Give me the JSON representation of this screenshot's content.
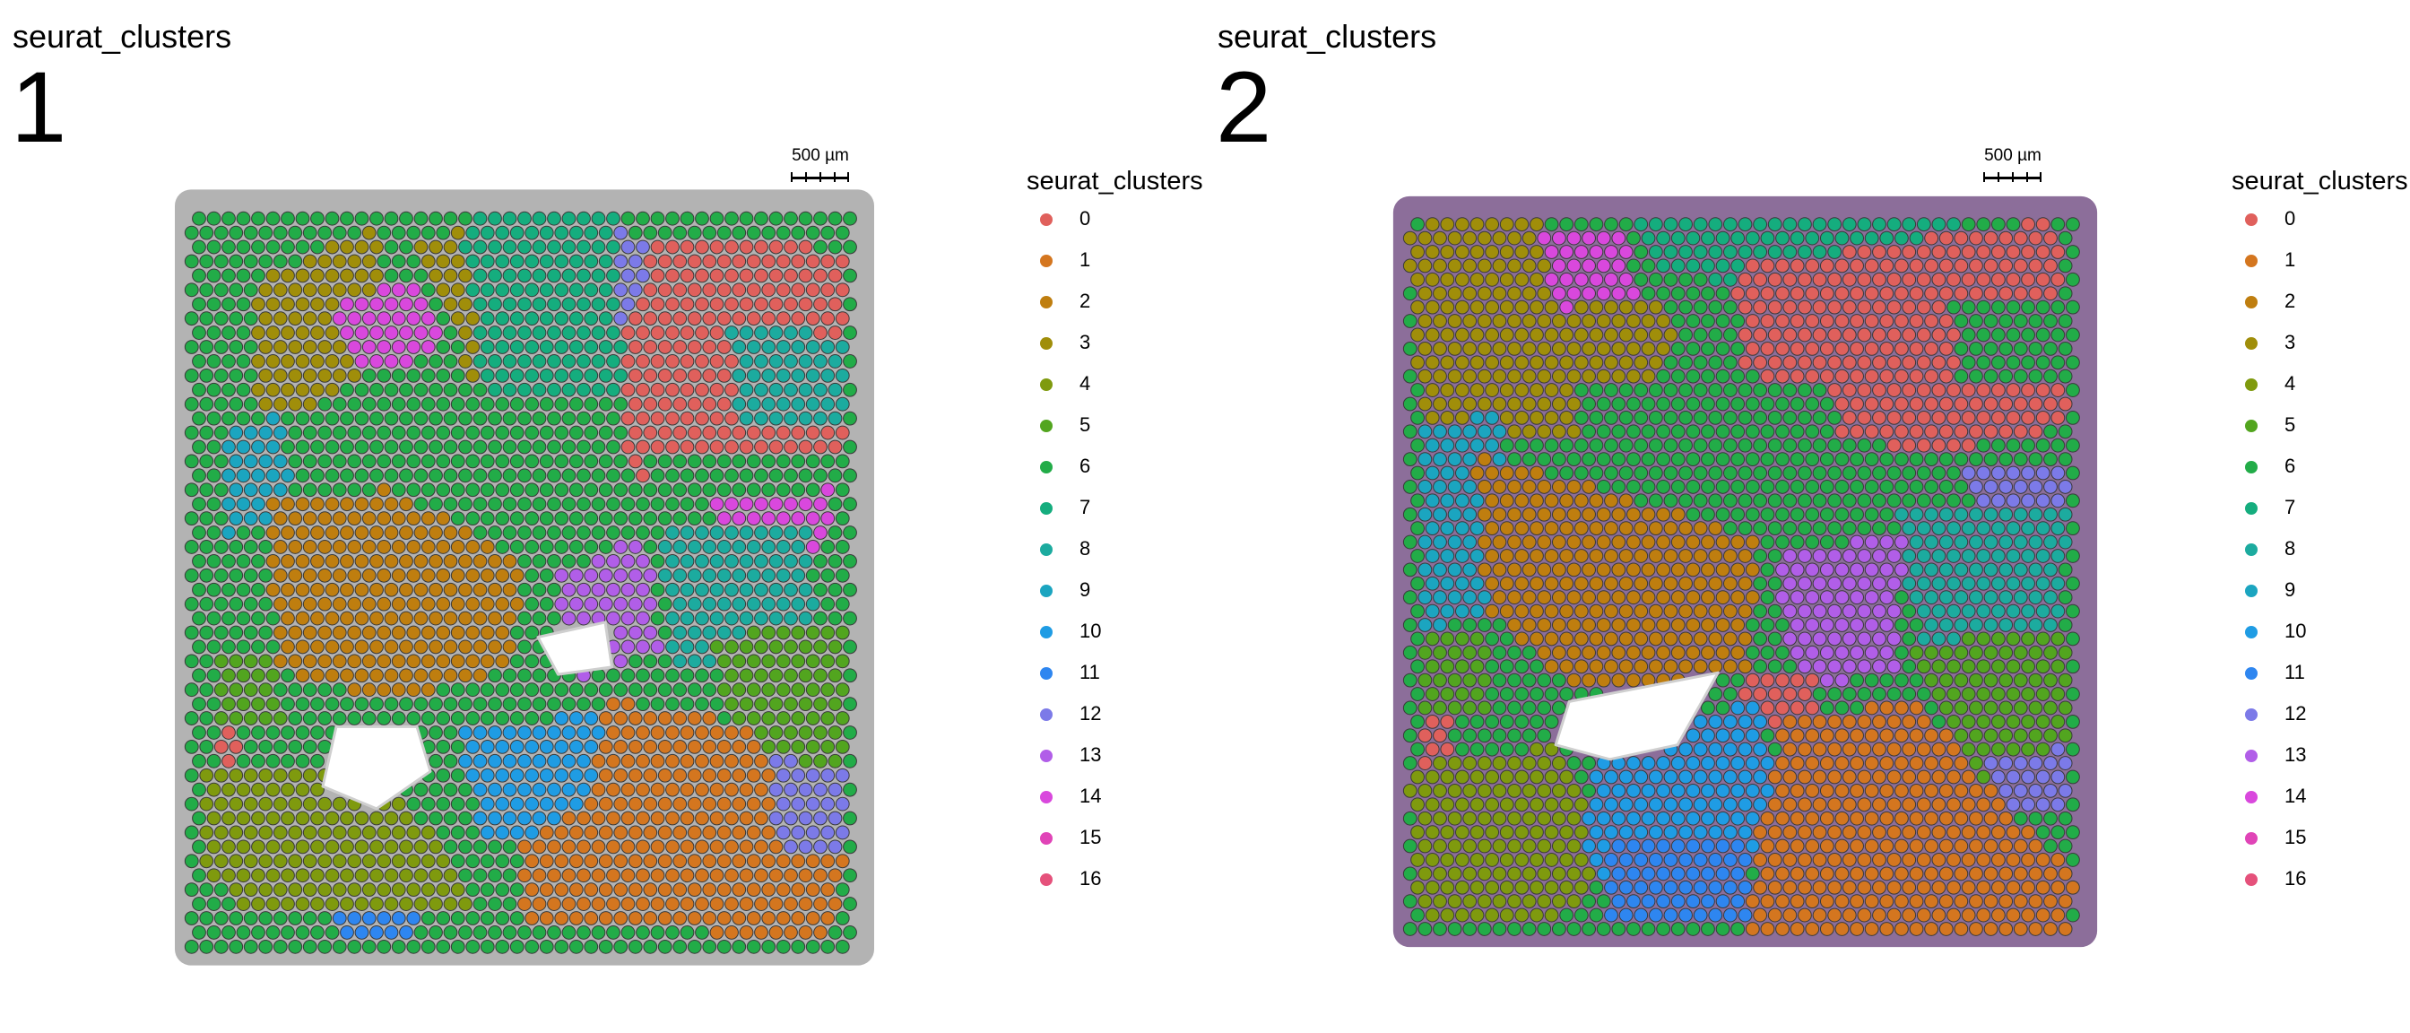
{
  "chart_data": [
    {
      "type": "scatter",
      "group_title": "seurat_clusters",
      "slice": "1",
      "scalebar": "500 µm",
      "legend": {
        "title": "seurat_clusters",
        "placement": "right",
        "entries": [
          "0",
          "1",
          "2",
          "3",
          "4",
          "5",
          "6",
          "7",
          "8",
          "9",
          "10",
          "11",
          "12",
          "13",
          "14",
          "15",
          "16"
        ]
      },
      "background_color": "#b3b3b3",
      "x_range": [
        0,
        1
      ],
      "y_range": [
        0,
        1
      ],
      "regions": [
        {
          "cluster": "3",
          "points": [
            [
              0.1,
              0.9
            ],
            [
              0.28,
              0.97
            ],
            [
              0.3,
              0.8
            ],
            [
              0.18,
              0.72
            ],
            [
              0.1,
              0.72
            ]
          ]
        },
        {
          "cluster": "14",
          "points": [
            [
              0.22,
              0.87
            ],
            [
              0.34,
              0.9
            ],
            [
              0.38,
              0.8
            ],
            [
              0.24,
              0.77
            ]
          ]
        },
        {
          "cluster": "3",
          "points": [
            [
              0.34,
              0.95
            ],
            [
              0.52,
              0.99
            ],
            [
              0.58,
              0.8
            ],
            [
              0.42,
              0.77
            ]
          ]
        },
        {
          "cluster": "7",
          "points": [
            [
              0.4,
              0.98
            ],
            [
              0.64,
              0.99
            ],
            [
              0.66,
              0.75
            ],
            [
              0.44,
              0.75
            ]
          ]
        },
        {
          "cluster": "12",
          "points": [
            [
              0.64,
              0.97
            ],
            [
              0.71,
              0.92
            ],
            [
              0.7,
              0.8
            ],
            [
              0.64,
              0.82
            ]
          ]
        },
        {
          "cluster": "0",
          "points": [
            [
              0.7,
              0.96
            ],
            [
              0.98,
              0.94
            ],
            [
              0.98,
              0.6
            ],
            [
              0.66,
              0.62
            ],
            [
              0.64,
              0.8
            ]
          ]
        },
        {
          "cluster": "8",
          "points": [
            [
              0.8,
              0.85
            ],
            [
              0.98,
              0.82
            ],
            [
              0.98,
              0.7
            ],
            [
              0.82,
              0.7
            ]
          ]
        },
        {
          "cluster": "9",
          "points": [
            [
              0.06,
              0.7
            ],
            [
              0.14,
              0.72
            ],
            [
              0.16,
              0.58
            ],
            [
              0.06,
              0.56
            ]
          ]
        },
        {
          "cluster": "6",
          "points": [
            [
              0.2,
              0.7
            ],
            [
              0.62,
              0.72
            ],
            [
              0.64,
              0.58
            ],
            [
              0.36,
              0.55
            ],
            [
              0.22,
              0.6
            ]
          ]
        },
        {
          "cluster": "2",
          "points": [
            [
              0.12,
              0.6
            ],
            [
              0.3,
              0.62
            ],
            [
              0.5,
              0.52
            ],
            [
              0.48,
              0.38
            ],
            [
              0.3,
              0.33
            ],
            [
              0.13,
              0.38
            ]
          ]
        },
        {
          "cluster": "6",
          "points": [
            [
              0.68,
              0.66
            ],
            [
              0.98,
              0.66
            ],
            [
              0.98,
              0.52
            ],
            [
              0.7,
              0.54
            ]
          ]
        },
        {
          "cluster": "14",
          "points": [
            [
              0.78,
              0.6
            ],
            [
              0.96,
              0.62
            ],
            [
              0.95,
              0.54
            ],
            [
              0.8,
              0.54
            ]
          ]
        },
        {
          "cluster": "13",
          "points": [
            [
              0.54,
              0.5
            ],
            [
              0.68,
              0.56
            ],
            [
              0.7,
              0.4
            ],
            [
              0.58,
              0.36
            ]
          ]
        },
        {
          "cluster": "8",
          "points": [
            [
              0.7,
              0.56
            ],
            [
              0.92,
              0.58
            ],
            [
              0.94,
              0.4
            ],
            [
              0.72,
              0.38
            ]
          ]
        },
        {
          "cluster": "5",
          "points": [
            [
              0.04,
              0.4
            ],
            [
              0.12,
              0.4
            ],
            [
              0.14,
              0.3
            ],
            [
              0.04,
              0.3
            ]
          ]
        },
        {
          "cluster": "0",
          "points": [
            [
              0.04,
              0.3
            ],
            [
              0.08,
              0.3
            ],
            [
              0.08,
              0.24
            ],
            [
              0.04,
              0.24
            ]
          ]
        },
        {
          "cluster": "4",
          "points": [
            [
              0.02,
              0.24
            ],
            [
              0.28,
              0.24
            ],
            [
              0.38,
              0.14
            ],
            [
              0.44,
              0.05
            ],
            [
              0.1,
              0.05
            ],
            [
              0.02,
              0.1
            ]
          ]
        },
        {
          "cluster": "5",
          "points": [
            [
              0.78,
              0.42
            ],
            [
              0.98,
              0.44
            ],
            [
              0.98,
              0.2
            ],
            [
              0.82,
              0.22
            ]
          ]
        },
        {
          "cluster": "10",
          "points": [
            [
              0.4,
              0.3
            ],
            [
              0.66,
              0.32
            ],
            [
              0.66,
              0.16
            ],
            [
              0.44,
              0.14
            ]
          ]
        },
        {
          "cluster": "1",
          "points": [
            [
              0.62,
              0.34
            ],
            [
              0.84,
              0.3
            ],
            [
              0.98,
              0.12
            ],
            [
              0.96,
              0.02
            ],
            [
              0.5,
              0.03
            ],
            [
              0.5,
              0.15
            ],
            [
              0.6,
              0.2
            ]
          ]
        },
        {
          "cluster": "12",
          "points": [
            [
              0.86,
              0.26
            ],
            [
              0.98,
              0.24
            ],
            [
              0.98,
              0.12
            ],
            [
              0.88,
              0.14
            ]
          ]
        },
        {
          "cluster": "11",
          "points": [
            [
              0.22,
              0.06
            ],
            [
              0.34,
              0.06
            ],
            [
              0.34,
              0.02
            ],
            [
              0.22,
              0.02
            ]
          ]
        }
      ],
      "holes": [
        {
          "points": [
            [
              0.22,
              0.3
            ],
            [
              0.34,
              0.3
            ],
            [
              0.36,
              0.24
            ],
            [
              0.28,
              0.19
            ],
            [
              0.2,
              0.22
            ]
          ]
        },
        {
          "points": [
            [
              0.52,
              0.42
            ],
            [
              0.62,
              0.44
            ],
            [
              0.63,
              0.38
            ],
            [
              0.55,
              0.37
            ]
          ]
        }
      ]
    },
    {
      "type": "scatter",
      "group_title": "seurat_clusters",
      "slice": "2",
      "scalebar": "500 µm",
      "legend": {
        "title": "seurat_clusters",
        "placement": "right",
        "entries": [
          "0",
          "1",
          "2",
          "3",
          "4",
          "5",
          "6",
          "7",
          "8",
          "9",
          "10",
          "11",
          "12",
          "13",
          "14",
          "15",
          "16"
        ]
      },
      "background_color": "#8c6e9a",
      "x_range": [
        0,
        1
      ],
      "y_range": [
        0,
        1
      ],
      "regions": [
        {
          "cluster": "3",
          "points": [
            [
              0.0,
              0.98
            ],
            [
              0.2,
              0.99
            ],
            [
              0.26,
              0.9
            ],
            [
              0.4,
              0.86
            ],
            [
              0.36,
              0.7
            ],
            [
              0.2,
              0.68
            ],
            [
              0.02,
              0.7
            ]
          ]
        },
        {
          "cluster": "14",
          "points": [
            [
              0.2,
              0.97
            ],
            [
              0.32,
              0.97
            ],
            [
              0.34,
              0.88
            ],
            [
              0.22,
              0.86
            ]
          ]
        },
        {
          "cluster": "7",
          "points": [
            [
              0.32,
              0.99
            ],
            [
              0.82,
              0.99
            ],
            [
              0.8,
              0.92
            ],
            [
              0.46,
              0.9
            ],
            [
              0.36,
              0.92
            ]
          ]
        },
        {
          "cluster": "0",
          "points": [
            [
              0.48,
              0.92
            ],
            [
              0.96,
              0.99
            ],
            [
              0.98,
              0.7
            ],
            [
              0.76,
              0.66
            ],
            [
              0.62,
              0.7
            ],
            [
              0.5,
              0.78
            ]
          ]
        },
        {
          "cluster": "6",
          "points": [
            [
              0.8,
              0.88
            ],
            [
              0.98,
              0.88
            ],
            [
              0.98,
              0.76
            ],
            [
              0.82,
              0.76
            ]
          ]
        },
        {
          "cluster": "6",
          "points": [
            [
              0.24,
              0.76
            ],
            [
              0.62,
              0.76
            ],
            [
              0.66,
              0.62
            ],
            [
              0.52,
              0.56
            ],
            [
              0.3,
              0.6
            ]
          ]
        },
        {
          "cluster": "9",
          "points": [
            [
              0.02,
              0.7
            ],
            [
              0.14,
              0.72
            ],
            [
              0.16,
              0.44
            ],
            [
              0.02,
              0.42
            ]
          ]
        },
        {
          "cluster": "2",
          "points": [
            [
              0.1,
              0.66
            ],
            [
              0.34,
              0.6
            ],
            [
              0.52,
              0.54
            ],
            [
              0.5,
              0.36
            ],
            [
              0.26,
              0.33
            ],
            [
              0.12,
              0.44
            ]
          ]
        },
        {
          "cluster": "12",
          "points": [
            [
              0.82,
              0.64
            ],
            [
              0.98,
              0.64
            ],
            [
              0.98,
              0.56
            ],
            [
              0.84,
              0.56
            ]
          ]
        },
        {
          "cluster": "8",
          "points": [
            [
              0.72,
              0.58
            ],
            [
              0.98,
              0.58
            ],
            [
              0.96,
              0.4
            ],
            [
              0.76,
              0.4
            ]
          ]
        },
        {
          "cluster": "13",
          "points": [
            [
              0.54,
              0.52
            ],
            [
              0.74,
              0.56
            ],
            [
              0.72,
              0.36
            ],
            [
              0.58,
              0.34
            ]
          ]
        },
        {
          "cluster": "0",
          "points": [
            [
              0.5,
              0.36
            ],
            [
              0.6,
              0.36
            ],
            [
              0.62,
              0.26
            ],
            [
              0.5,
              0.3
            ]
          ]
        },
        {
          "cluster": "5",
          "points": [
            [
              0.02,
              0.42
            ],
            [
              0.12,
              0.42
            ],
            [
              0.12,
              0.3
            ],
            [
              0.02,
              0.3
            ]
          ]
        },
        {
          "cluster": "0",
          "points": [
            [
              0.02,
              0.3
            ],
            [
              0.07,
              0.3
            ],
            [
              0.07,
              0.23
            ],
            [
              0.02,
              0.23
            ]
          ]
        },
        {
          "cluster": "4",
          "points": [
            [
              0.0,
              0.23
            ],
            [
              0.22,
              0.26
            ],
            [
              0.3,
              0.1
            ],
            [
              0.22,
              0.01
            ],
            [
              0.02,
              0.01
            ]
          ]
        },
        {
          "cluster": "5",
          "points": [
            [
              0.74,
              0.4
            ],
            [
              0.98,
              0.42
            ],
            [
              0.98,
              0.18
            ],
            [
              0.84,
              0.2
            ]
          ]
        },
        {
          "cluster": "12",
          "points": [
            [
              0.86,
              0.24
            ],
            [
              0.98,
              0.26
            ],
            [
              0.98,
              0.16
            ],
            [
              0.86,
              0.16
            ]
          ]
        },
        {
          "cluster": "10",
          "points": [
            [
              0.28,
              0.26
            ],
            [
              0.52,
              0.32
            ],
            [
              0.56,
              0.12
            ],
            [
              0.36,
              0.04
            ],
            [
              0.26,
              0.1
            ]
          ]
        },
        {
          "cluster": "11",
          "points": [
            [
              0.3,
              0.12
            ],
            [
              0.5,
              0.12
            ],
            [
              0.52,
              0.01
            ],
            [
              0.3,
              0.01
            ]
          ]
        },
        {
          "cluster": "1",
          "points": [
            [
              0.56,
              0.3
            ],
            [
              0.76,
              0.32
            ],
            [
              0.86,
              0.2
            ],
            [
              0.99,
              0.08
            ],
            [
              0.98,
              0.0
            ],
            [
              0.5,
              0.0
            ],
            [
              0.52,
              0.14
            ]
          ]
        }
      ],
      "holes": [
        {
          "points": [
            [
              0.24,
              0.32
            ],
            [
              0.46,
              0.36
            ],
            [
              0.4,
              0.26
            ],
            [
              0.3,
              0.24
            ],
            [
              0.22,
              0.26
            ]
          ]
        }
      ]
    }
  ],
  "cluster_colors": {
    "0": "#e0605c",
    "1": "#d4761f",
    "2": "#bf7e0f",
    "3": "#a08e0a",
    "4": "#7f9a0e",
    "5": "#52a51f",
    "6": "#22ac48",
    "7": "#15ad7e",
    "8": "#1cab9f",
    "9": "#1ba5c0",
    "10": "#1f9ce4",
    "11": "#2e86f0",
    "12": "#7c7ae8",
    "13": "#b15ee8",
    "14": "#d948dd",
    "15": "#e044b7",
    "16": "#e5517b"
  }
}
